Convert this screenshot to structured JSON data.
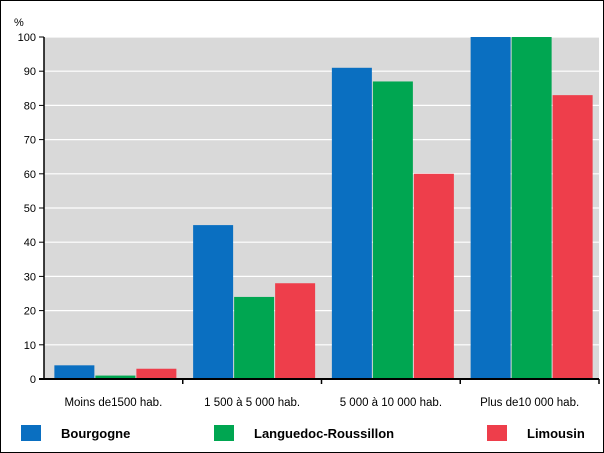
{
  "chart_data": {
    "type": "bar",
    "ylabel": "%",
    "ylim": [
      0,
      100
    ],
    "yticks": [
      0,
      10,
      20,
      30,
      40,
      50,
      60,
      70,
      80,
      90,
      100
    ],
    "grid": true,
    "legend_position": "bottom",
    "categories": [
      "Moins de1500 hab.",
      "1 500 à 5 000 hab.",
      "5 000 à 10 000 hab.",
      "Plus de10 000 hab."
    ],
    "series": [
      {
        "name": "Bourgogne",
        "color": "#0a6fc1",
        "values": [
          4,
          45,
          91,
          100
        ]
      },
      {
        "name": "Languedoc-Roussillon",
        "color": "#00a651",
        "values": [
          1,
          24,
          87,
          100
        ]
      },
      {
        "name": "Limousin",
        "color": "#ee3e4b",
        "values": [
          3,
          28,
          60,
          83
        ]
      }
    ]
  },
  "colors": {
    "plot_background": "#d9d9d9",
    "gridline": "#ffffff"
  }
}
